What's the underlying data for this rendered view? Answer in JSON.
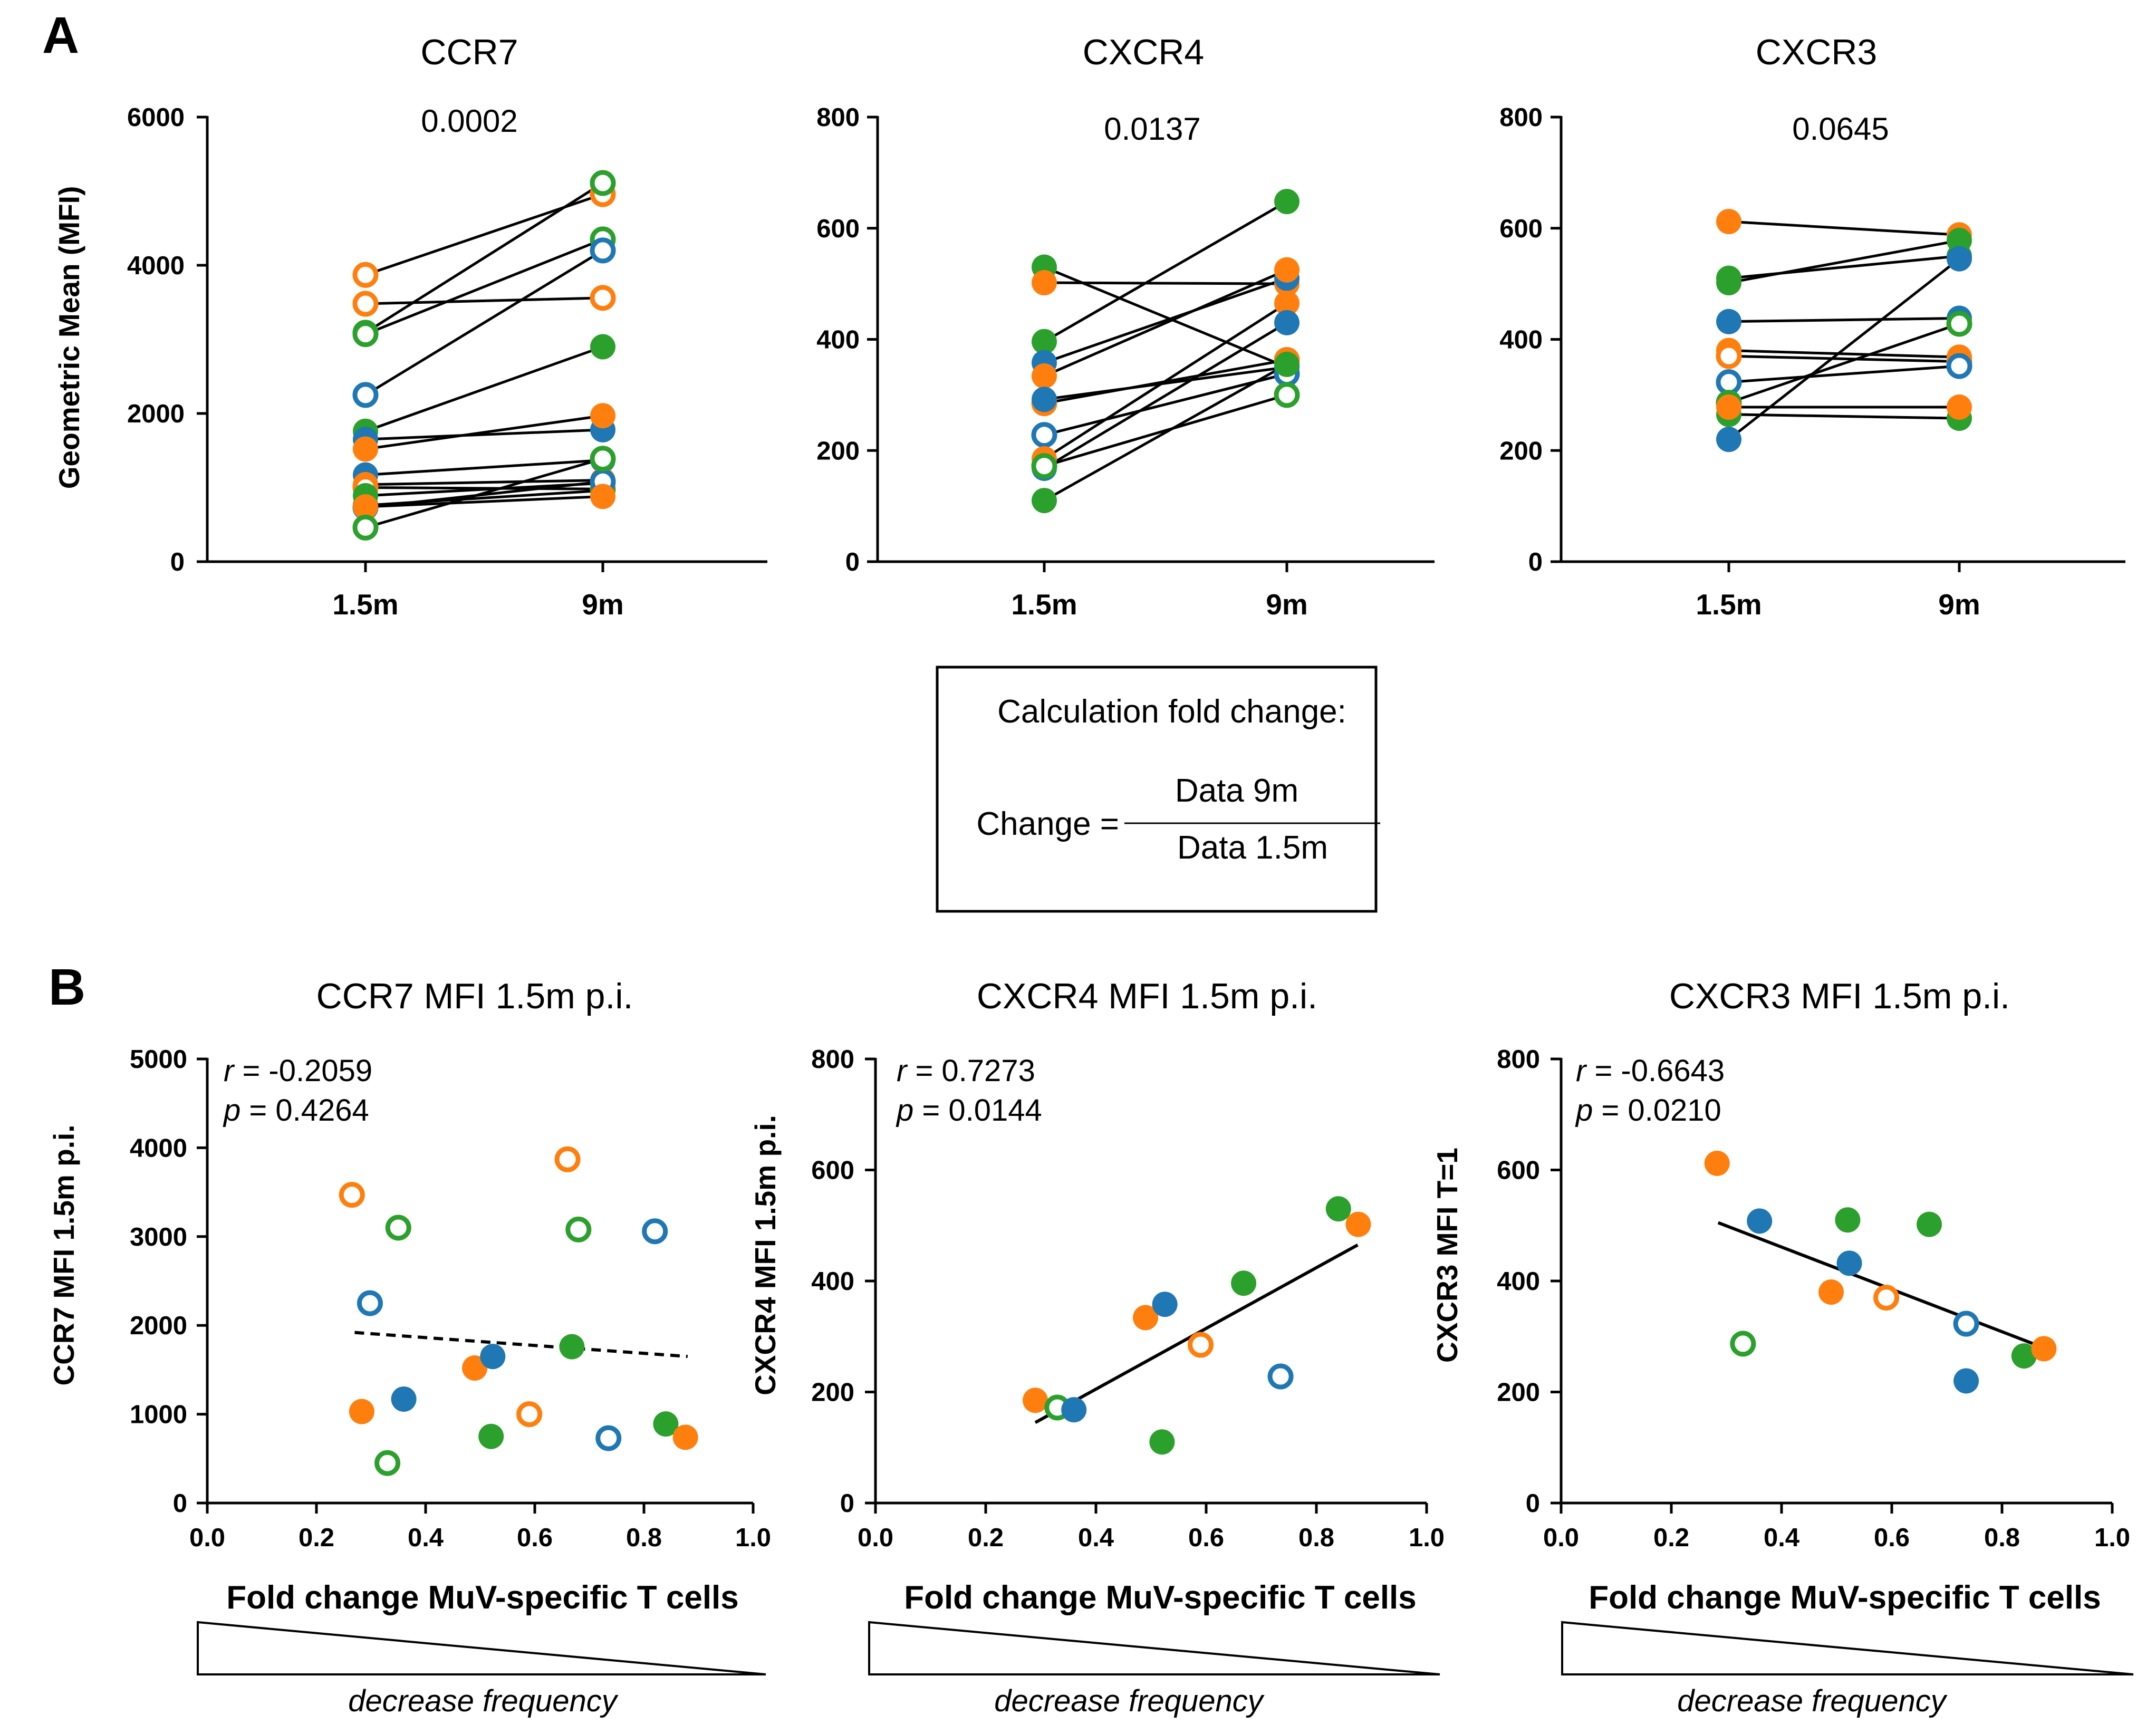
{
  "panel_labels": {
    "a": "A",
    "b": "B"
  },
  "colors": {
    "orange": "#ff7f0e",
    "blue": "#1f77b4",
    "green": "#2ca02c"
  },
  "calc_box": {
    "title": "Calculation fold change:",
    "lhs": "Change =",
    "numerator": "Data 9m",
    "denominator": "Data 1.5m"
  },
  "chart_data": [
    {
      "type": "scatter",
      "title": "CCR7",
      "pvalue": "0.0002",
      "ylabel": "Geometric Mean (MFI)",
      "xlabel": "",
      "categories": [
        "1.5m",
        "9m"
      ],
      "ylim": [
        0,
        6000
      ],
      "yticks": [
        "0",
        "2000",
        "4000",
        "6000"
      ],
      "pairs": [
        {
          "c": "orange",
          "open": true,
          "v": [
            3870,
            4960
          ]
        },
        {
          "c": "orange",
          "open": true,
          "v": [
            3480,
            3560
          ]
        },
        {
          "c": "green",
          "open": true,
          "v": [
            3090,
            5110
          ]
        },
        {
          "c": "green",
          "open": true,
          "v": [
            3070,
            4350
          ]
        },
        {
          "c": "blue",
          "open": true,
          "v": [
            2250,
            4200
          ]
        },
        {
          "c": "green",
          "open": false,
          "v": [
            1760,
            2900
          ]
        },
        {
          "c": "blue",
          "open": false,
          "v": [
            1650,
            1780
          ]
        },
        {
          "c": "orange",
          "open": false,
          "v": [
            1520,
            1970
          ]
        },
        {
          "c": "blue",
          "open": false,
          "v": [
            1170,
            1370
          ]
        },
        {
          "c": "orange",
          "open": false,
          "v": [
            1040,
            1100
          ]
        },
        {
          "c": "orange",
          "open": true,
          "v": [
            1000,
            980
          ]
        },
        {
          "c": "green",
          "open": false,
          "v": [
            890,
            1060
          ]
        },
        {
          "c": "green",
          "open": false,
          "v": [
            760,
            960
          ]
        },
        {
          "c": "blue",
          "open": true,
          "v": [
            730,
            1080
          ]
        },
        {
          "c": "orange",
          "open": false,
          "v": [
            740,
            880
          ]
        },
        {
          "c": "green",
          "open": true,
          "v": [
            460,
            1390
          ]
        }
      ]
    },
    {
      "type": "scatter",
      "title": "CXCR4",
      "pvalue": "0.0137",
      "ylabel": "",
      "xlabel": "",
      "categories": [
        "1.5m",
        "9m"
      ],
      "ylim": [
        0,
        800
      ],
      "yticks": [
        "0",
        "200",
        "400",
        "600",
        "800"
      ],
      "pairs": [
        {
          "c": "green",
          "open": false,
          "v": [
            530,
            350
          ]
        },
        {
          "c": "orange",
          "open": false,
          "v": [
            502,
            500
          ]
        },
        {
          "c": "green",
          "open": false,
          "v": [
            396,
            648
          ]
        },
        {
          "c": "blue",
          "open": false,
          "v": [
            358,
            510
          ]
        },
        {
          "c": "orange",
          "open": false,
          "v": [
            334,
            525
          ]
        },
        {
          "c": "orange",
          "open": true,
          "v": [
            285,
            363
          ]
        },
        {
          "c": "blue",
          "open": false,
          "v": [
            292,
            350
          ]
        },
        {
          "c": "blue",
          "open": true,
          "v": [
            228,
            338
          ]
        },
        {
          "c": "orange",
          "open": false,
          "v": [
            185,
            465
          ]
        },
        {
          "c": "blue",
          "open": false,
          "v": [
            168,
            430
          ]
        },
        {
          "c": "green",
          "open": true,
          "v": [
            172,
            300
          ]
        },
        {
          "c": "green",
          "open": false,
          "v": [
            110,
            355
          ]
        }
      ]
    },
    {
      "type": "scatter",
      "title": "CXCR3",
      "pvalue": "0.0645",
      "ylabel": "",
      "xlabel": "",
      "categories": [
        "1.5m",
        "9m"
      ],
      "ylim": [
        0,
        800
      ],
      "yticks": [
        "0",
        "200",
        "400",
        "600",
        "800"
      ],
      "pairs": [
        {
          "c": "orange",
          "open": false,
          "v": [
            612,
            588
          ]
        },
        {
          "c": "green",
          "open": false,
          "v": [
            510,
            550
          ]
        },
        {
          "c": "green",
          "open": false,
          "v": [
            502,
            578
          ]
        },
        {
          "c": "blue",
          "open": false,
          "v": [
            432,
            438
          ]
        },
        {
          "c": "orange",
          "open": false,
          "v": [
            380,
            368
          ]
        },
        {
          "c": "orange",
          "open": true,
          "v": [
            370,
            360
          ]
        },
        {
          "c": "blue",
          "open": true,
          "v": [
            323,
            352
          ]
        },
        {
          "c": "green",
          "open": true,
          "v": [
            286,
            428
          ]
        },
        {
          "c": "green",
          "open": false,
          "v": [
            265,
            258
          ]
        },
        {
          "c": "orange",
          "open": false,
          "v": [
            278,
            278
          ]
        },
        {
          "c": "blue",
          "open": false,
          "v": [
            220,
            545
          ]
        }
      ]
    },
    {
      "type": "scatter",
      "title": "CCR7 MFI 1.5m p.i.",
      "ylabel": "CCR7 MFI 1.5m p.i.",
      "xlabel": "Fold change MuV-specific T cells",
      "r_label": "r",
      "r_value": " = -0.2059",
      "p_label": "p",
      "p_value": " = 0.4264",
      "decrease_label": "decrease frequency",
      "xlim": [
        0,
        1.0
      ],
      "ylim": [
        0,
        5000
      ],
      "xticks": [
        "0.0",
        "0.2",
        "0.4",
        "0.6",
        "0.8",
        "1.0"
      ],
      "yticks": [
        "0",
        "1000",
        "2000",
        "3000",
        "4000",
        "5000"
      ],
      "fit": {
        "x": [
          0.27,
          0.88
        ],
        "y": [
          1920,
          1650
        ],
        "dashed": true
      },
      "points": [
        {
          "x": 0.265,
          "y": 3470,
          "c": "orange",
          "open": true
        },
        {
          "x": 0.283,
          "y": 1030,
          "c": "orange",
          "open": false
        },
        {
          "x": 0.298,
          "y": 2250,
          "c": "blue",
          "open": true
        },
        {
          "x": 0.33,
          "y": 450,
          "c": "green",
          "open": true
        },
        {
          "x": 0.35,
          "y": 3100,
          "c": "green",
          "open": true
        },
        {
          "x": 0.36,
          "y": 1170,
          "c": "blue",
          "open": false
        },
        {
          "x": 0.49,
          "y": 1520,
          "c": "orange",
          "open": false
        },
        {
          "x": 0.52,
          "y": 750,
          "c": "green",
          "open": false
        },
        {
          "x": 0.523,
          "y": 1650,
          "c": "blue",
          "open": false
        },
        {
          "x": 0.59,
          "y": 1000,
          "c": "orange",
          "open": true
        },
        {
          "x": 0.66,
          "y": 3870,
          "c": "orange",
          "open": true
        },
        {
          "x": 0.668,
          "y": 1760,
          "c": "green",
          "open": false
        },
        {
          "x": 0.68,
          "y": 3080,
          "c": "green",
          "open": true
        },
        {
          "x": 0.735,
          "y": 730,
          "c": "blue",
          "open": true
        },
        {
          "x": 0.82,
          "y": 3060,
          "c": "blue",
          "open": true
        },
        {
          "x": 0.84,
          "y": 890,
          "c": "green",
          "open": false
        },
        {
          "x": 0.876,
          "y": 740,
          "c": "orange",
          "open": false
        }
      ]
    },
    {
      "type": "scatter",
      "title": "CXCR4 MFI 1.5m p.i.",
      "ylabel": "CXCR4 MFI 1.5m p.i.",
      "xlabel": "Fold change MuV-specific T cells",
      "r_label": "r",
      "r_value": " = 0.7273",
      "p_label": "p",
      "p_value": " = 0.0144",
      "decrease_label": "decrease frequency",
      "xlim": [
        0,
        1.0
      ],
      "ylim": [
        0,
        800
      ],
      "xticks": [
        "0.0",
        "0.2",
        "0.4",
        "0.6",
        "0.8",
        "1.0"
      ],
      "yticks": [
        "0",
        "200",
        "400",
        "600",
        "800"
      ],
      "fit": {
        "x": [
          0.29,
          0.875
        ],
        "y": [
          145,
          465
        ],
        "dashed": false
      },
      "points": [
        {
          "x": 0.29,
          "y": 185,
          "c": "orange",
          "open": false
        },
        {
          "x": 0.33,
          "y": 172,
          "c": "green",
          "open": true
        },
        {
          "x": 0.36,
          "y": 168,
          "c": "blue",
          "open": false
        },
        {
          "x": 0.49,
          "y": 334,
          "c": "orange",
          "open": false
        },
        {
          "x": 0.52,
          "y": 110,
          "c": "green",
          "open": false
        },
        {
          "x": 0.525,
          "y": 358,
          "c": "blue",
          "open": false
        },
        {
          "x": 0.59,
          "y": 285,
          "c": "orange",
          "open": true
        },
        {
          "x": 0.668,
          "y": 396,
          "c": "green",
          "open": false
        },
        {
          "x": 0.735,
          "y": 228,
          "c": "blue",
          "open": true
        },
        {
          "x": 0.84,
          "y": 530,
          "c": "green",
          "open": false
        },
        {
          "x": 0.876,
          "y": 502,
          "c": "orange",
          "open": false
        }
      ]
    },
    {
      "type": "scatter",
      "title": "CXCR3 MFI 1.5m p.i.",
      "ylabel": "CXCR3 MFI T=1",
      "xlabel": "Fold change MuV-specific T cells",
      "r_label": "r",
      "r_value": " = -0.6643",
      "p_label": "p",
      "p_value": " = 0.0210",
      "decrease_label": "decrease frequency",
      "xlim": [
        0,
        1.0
      ],
      "ylim": [
        0,
        800
      ],
      "xticks": [
        "0.0",
        "0.2",
        "0.4",
        "0.6",
        "0.8",
        "1.0"
      ],
      "yticks": [
        "0",
        "200",
        "400",
        "600",
        "800"
      ],
      "fit": {
        "x": [
          0.285,
          0.875
        ],
        "y": [
          505,
          280
        ],
        "dashed": false
      },
      "points": [
        {
          "x": 0.283,
          "y": 612,
          "c": "orange",
          "open": false
        },
        {
          "x": 0.33,
          "y": 287,
          "c": "green",
          "open": true
        },
        {
          "x": 0.36,
          "y": 508,
          "c": "blue",
          "open": false
        },
        {
          "x": 0.49,
          "y": 380,
          "c": "orange",
          "open": false
        },
        {
          "x": 0.52,
          "y": 510,
          "c": "green",
          "open": false
        },
        {
          "x": 0.523,
          "y": 432,
          "c": "blue",
          "open": false
        },
        {
          "x": 0.59,
          "y": 370,
          "c": "orange",
          "open": true
        },
        {
          "x": 0.668,
          "y": 502,
          "c": "green",
          "open": false
        },
        {
          "x": 0.735,
          "y": 323,
          "c": "blue",
          "open": true
        },
        {
          "x": 0.735,
          "y": 220,
          "c": "blue",
          "open": false
        },
        {
          "x": 0.84,
          "y": 265,
          "c": "green",
          "open": false
        },
        {
          "x": 0.876,
          "y": 278,
          "c": "orange",
          "open": false
        }
      ]
    }
  ]
}
